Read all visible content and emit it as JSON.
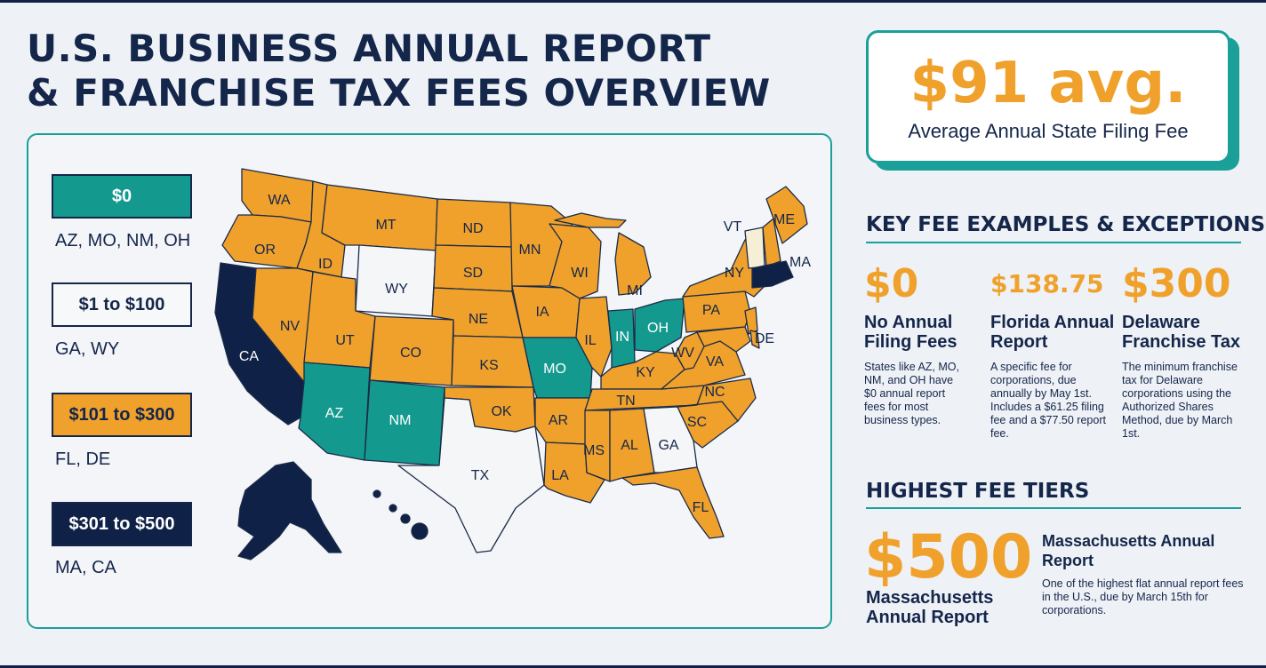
{
  "title": {
    "line1": "U.S. BUSINESS ANNUAL REPORT",
    "line2": "& FRANCHISE TAX FEES OVERVIEW"
  },
  "colors": {
    "navy": "#0f2147",
    "teal": "#14998f",
    "orange": "#f0a12b",
    "white_tier": "#f5f6f7",
    "vt_tier": "#f6efd6"
  },
  "legend": [
    {
      "label": "$0",
      "states": "AZ, MO, NM, OH",
      "tier": "teal"
    },
    {
      "label": "$1 to $100",
      "states": "GA, WY",
      "tier": "white"
    },
    {
      "label": "$101 to $300",
      "states": "FL, DE",
      "tier": "orange"
    },
    {
      "label": "$301 to $500",
      "states": "MA, CA",
      "tier": "navy"
    }
  ],
  "map_labels": {
    "WA": "WA",
    "OR": "OR",
    "CA": "CA",
    "ID": "ID",
    "NV": "NV",
    "MT": "MT",
    "WY": "WY",
    "UT": "UT",
    "AZ": "AZ",
    "CO": "CO",
    "NM": "NM",
    "ND": "ND",
    "SD": "SD",
    "NE": "NE",
    "KS": "KS",
    "OK": "OK",
    "TX": "TX",
    "MN": "MN",
    "IA": "IA",
    "MO": "MO",
    "AR": "AR",
    "LA": "LA",
    "WI": "WI",
    "IL": "IL",
    "MS": "MS",
    "MI": "MI",
    "IN": "IN",
    "KY": "KY",
    "TN": "TN",
    "AL": "AL",
    "OH": "OH",
    "WV": "WV",
    "VA": "VA",
    "NC": "NC",
    "SC": "SC",
    "GA": "GA",
    "FL": "FL",
    "PA": "PA",
    "NY": "NY",
    "VT": "VT",
    "ME": "ME",
    "MA": "MA",
    "DE": "DE"
  },
  "average": {
    "value": "$91 avg.",
    "label": "Average Annual State Filing Fee"
  },
  "key_fees": {
    "heading": "KEY FEE EXAMPLES & EXCEPTIONS",
    "items": [
      {
        "amount": "$0",
        "title": "No Annual Filing Fees",
        "desc": "States like AZ, MO, NM, and OH have $0 annual report fees for most business types."
      },
      {
        "amount": "$138.75",
        "title": "Florida Annual Report",
        "desc": "A specific fee for corporations, due annually by May 1st. Includes a $61.25 filing fee and a $77.50 report fee."
      },
      {
        "amount": "$300",
        "title": "Delaware Franchise Tax",
        "desc": "The minimum franchise tax for Delaware corporations using the Authorized Shares Method, due by March 1st."
      }
    ]
  },
  "highest": {
    "heading": "HIGHEST FEE TIERS",
    "amount": "$500",
    "amount_label": "Massachusetts Annual Report",
    "title": "Massachusetts Annual Report",
    "desc": "One of the highest flat annual report fees in the U.S., due by March 15th for corporations."
  }
}
